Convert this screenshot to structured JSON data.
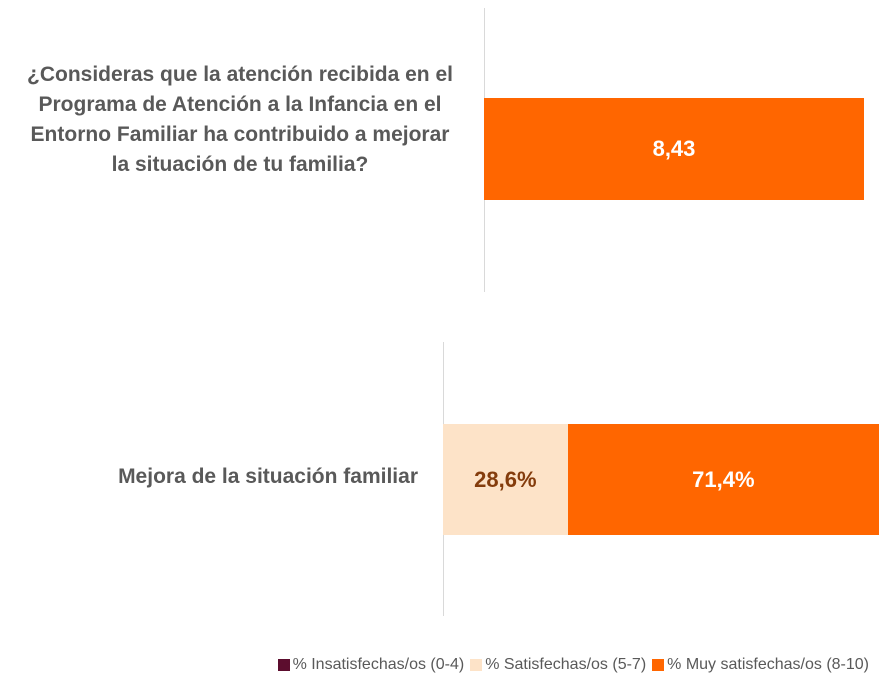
{
  "chart_data": [
    {
      "type": "bar",
      "orientation": "horizontal",
      "categories": [
        "¿Consideras que la atención recibida en el Programa de Atención a la Infancia en el Entorno Familiar ha contribuido a mejorar la situación de tu familia?"
      ],
      "values": [
        8.43
      ],
      "value_labels": [
        "8,43"
      ],
      "color": "#ff6600",
      "xlim": [
        0,
        9
      ]
    },
    {
      "type": "stacked_bar",
      "orientation": "horizontal",
      "categories": [
        "Mejora de la situación familiar"
      ],
      "series": [
        {
          "name": "% Insatisfechas/os (0-4)",
          "color": "#5c0d2e",
          "values": [
            0
          ]
        },
        {
          "name": "% Satisfechas/os (5-7)",
          "color": "#fde3c8",
          "values": [
            28.6
          ],
          "value_labels": [
            "28,6%"
          ]
        },
        {
          "name": "% Muy satisfechas/os (8-10)",
          "color": "#ff6600",
          "values": [
            71.4
          ],
          "value_labels": [
            "71,4%"
          ]
        }
      ],
      "xlim": [
        0,
        100
      ],
      "legend": "bottom"
    }
  ]
}
